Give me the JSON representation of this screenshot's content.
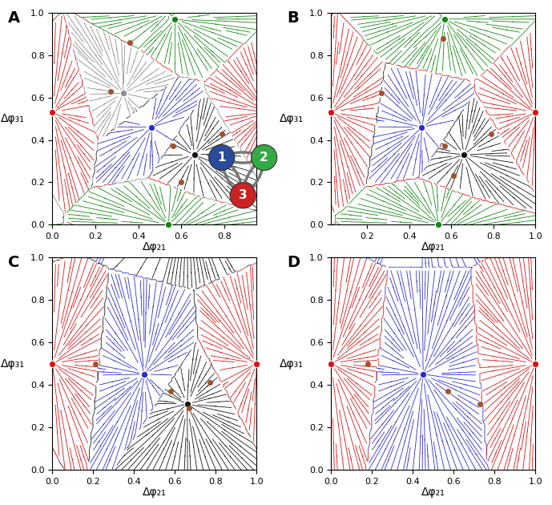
{
  "chart_data": [
    {
      "type": "phase_portrait",
      "label": "A",
      "x_label": "Δφ₂₁",
      "y_label": "Δφ₃₁",
      "xlim": [
        0.0,
        0.95
      ],
      "ylim": [
        0.0,
        1.0
      ],
      "xticks": [
        0.0,
        0.2,
        0.4,
        0.6,
        0.8
      ],
      "yticks": [
        0.0,
        0.2,
        0.4,
        0.6,
        0.8,
        1.0
      ],
      "stable_points": [
        {
          "x": 0.46,
          "y": 0.46,
          "color": "#2a2ad0"
        },
        {
          "x": 0.66,
          "y": 0.33,
          "color": "#111111"
        },
        {
          "x": 0.33,
          "y": 0.62,
          "color": "#8c8c8c"
        },
        {
          "x": 0.0,
          "y": 0.53,
          "color": "#dd1111"
        },
        {
          "x": 0.57,
          "y": 0.97,
          "color": "#118811"
        },
        {
          "x": 0.54,
          "y": 0.0,
          "color": "#118811"
        }
      ],
      "saddle_points": {
        "color": "#a0522d",
        "x": [
          0.36,
          0.27,
          0.56,
          0.79,
          0.6
        ],
        "y": [
          0.86,
          0.63,
          0.37,
          0.43,
          0.2
        ]
      }
    },
    {
      "type": "phase_portrait",
      "label": "B",
      "x_label": "Δφ₂₁",
      "y_label": "Δφ₃₁",
      "xlim": [
        0.03,
        1.0
      ],
      "ylim": [
        0.0,
        1.0
      ],
      "xticks": [
        0.2,
        0.4,
        0.6,
        0.8,
        1.0
      ],
      "yticks": [
        0.0,
        0.2,
        0.4,
        0.6,
        0.8,
        1.0
      ],
      "stable_points": [
        {
          "x": 0.46,
          "y": 0.46,
          "color": "#2a2ad0"
        },
        {
          "x": 0.66,
          "y": 0.33,
          "color": "#111111"
        },
        {
          "x": 0.03,
          "y": 0.53,
          "color": "#dd1111"
        },
        {
          "x": 1.0,
          "y": 0.53,
          "color": "#dd1111"
        },
        {
          "x": 0.57,
          "y": 0.97,
          "color": "#118811"
        },
        {
          "x": 0.54,
          "y": 0.0,
          "color": "#118811"
        }
      ],
      "saddle_points": {
        "color": "#a0522d",
        "x": [
          0.56,
          0.27,
          0.57,
          0.79,
          0.61
        ],
        "y": [
          0.88,
          0.62,
          0.37,
          0.43,
          0.23
        ]
      }
    },
    {
      "type": "phase_portrait",
      "label": "C",
      "x_label": "Δφ₂₁",
      "y_label": "Δφ₃₁",
      "xlim": [
        0.0,
        1.0
      ],
      "ylim": [
        0.0,
        1.0
      ],
      "xticks": [
        0.0,
        0.2,
        0.4,
        0.6,
        0.8,
        1.0
      ],
      "yticks": [
        0.0,
        0.2,
        0.4,
        0.6,
        0.8,
        1.0
      ],
      "stable_points": [
        {
          "x": 0.45,
          "y": 0.45,
          "color": "#2a2ad0"
        },
        {
          "x": 0.66,
          "y": 0.31,
          "color": "#111111"
        },
        {
          "x": 0.0,
          "y": 0.5,
          "color": "#dd1111"
        },
        {
          "x": 1.0,
          "y": 0.5,
          "color": "#dd1111"
        }
      ],
      "saddle_points": {
        "color": "#a0522d",
        "x": [
          0.21,
          0.58,
          0.67,
          0.77
        ],
        "y": [
          0.5,
          0.37,
          0.29,
          0.41
        ]
      }
    },
    {
      "type": "phase_portrait",
      "label": "D",
      "x_label": "Δφ₂₁",
      "y_label": "Δφ₃₁",
      "xlim": [
        0.0,
        1.0
      ],
      "ylim": [
        0.0,
        1.0
      ],
      "xticks": [
        0.0,
        0.2,
        0.4,
        0.6,
        0.8,
        1.0
      ],
      "yticks": [
        0.0,
        0.2,
        0.4,
        0.6,
        0.8,
        1.0
      ],
      "stable_points": [
        {
          "x": 0.45,
          "y": 0.45,
          "color": "#2a2ad0"
        },
        {
          "x": 0.0,
          "y": 0.5,
          "color": "#dd1111"
        },
        {
          "x": 1.0,
          "y": 0.5,
          "color": "#dd1111"
        }
      ],
      "saddle_points": {
        "color": "#a0522d",
        "x": [
          0.18,
          0.57,
          0.73
        ],
        "y": [
          0.5,
          0.37,
          0.31
        ]
      }
    }
  ],
  "network": {
    "nodes": [
      {
        "label": "1",
        "color": "#2a4a9a"
      },
      {
        "label": "2",
        "color": "#33aa44"
      },
      {
        "label": "3",
        "color": "#cc2222"
      }
    ]
  }
}
